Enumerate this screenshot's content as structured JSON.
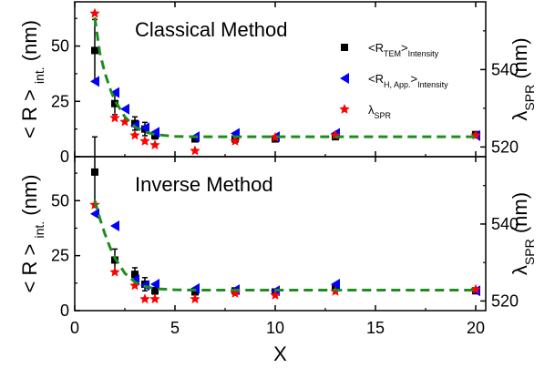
{
  "chart_data": [
    {
      "type": "scatter",
      "title": "Classical Method",
      "xlim": [
        0,
        20.5
      ],
      "ylim": [
        0,
        70
      ],
      "y2lim": [
        517.5,
        557.5
      ],
      "xticks": [
        0,
        5,
        10,
        15,
        20
      ],
      "yticks": [
        0,
        25,
        50
      ],
      "y2ticks": [
        520,
        540
      ],
      "ylabel": {
        "main": "< R >",
        "sub": "int.",
        "unit": "(nm)"
      },
      "y2label": {
        "main": "λ",
        "sub": "SPR",
        "unit": "(nm)"
      },
      "legend_position": "top-right",
      "series": [
        {
          "name": {
            "main": "<R",
            "sub": "TEM",
            "tail": ">",
            "sub2": "Intensity"
          },
          "marker": "square",
          "color": "#000000",
          "axis": "left",
          "x": [
            1,
            2,
            3,
            3.5,
            4,
            6,
            8,
            10,
            13,
            20
          ],
          "y": [
            48,
            24,
            15,
            12.5,
            9.5,
            8,
            8,
            8,
            9,
            10
          ],
          "err": [
            14,
            5,
            3,
            3,
            1.5,
            0,
            0,
            0,
            0,
            0
          ]
        },
        {
          "name": {
            "main": "<R",
            "sub": "H, App.",
            "tail": ">",
            "sub2": "Intensity"
          },
          "marker": "triangle-left",
          "color": "#0000ff",
          "axis": "left",
          "x": [
            1,
            2,
            2.5,
            3,
            3.5,
            4,
            6,
            8,
            10,
            13,
            20
          ],
          "y": [
            34,
            29,
            21.5,
            14,
            13,
            11,
            9,
            10.5,
            9,
            10.5,
            9.5
          ]
        },
        {
          "name": {
            "main": "λ",
            "sub": "SPR"
          },
          "marker": "star",
          "color": "#ff0000",
          "axis": "right",
          "x": [
            1,
            2,
            2.5,
            3,
            3.5,
            4,
            6,
            8,
            10,
            13,
            20
          ],
          "y": [
            554.5,
            527.5,
            526.5,
            523,
            521.5,
            520.5,
            519,
            521.5,
            522.5,
            523,
            523
          ]
        },
        {
          "name": "",
          "kind": "fit-line",
          "style": "dashed",
          "color": "#1e8c1e",
          "axis": "left",
          "x": [
            1,
            1.25,
            1.5,
            1.75,
            2,
            2.5,
            3,
            3.5,
            4,
            5,
            6,
            8,
            10,
            13,
            16,
            20
          ],
          "y": [
            63,
            47,
            38,
            31,
            25.5,
            18,
            13.5,
            11.2,
            10,
            9.2,
            9,
            9,
            9,
            9,
            9,
            9
          ]
        }
      ]
    },
    {
      "type": "scatter",
      "title": "Inverse Method",
      "xlim": [
        0,
        20.5
      ],
      "ylim": [
        0,
        70
      ],
      "y2lim": [
        517.5,
        557.5
      ],
      "xticks": [
        0,
        5,
        10,
        15,
        20
      ],
      "yticks": [
        0,
        25,
        50
      ],
      "y2ticks": [
        520,
        540
      ],
      "xlabel": "X",
      "ylabel": {
        "main": "< R >",
        "sub": "int.",
        "unit": "(nm)"
      },
      "y2label": {
        "main": "λ",
        "sub": "SPR",
        "unit": "(nm)"
      },
      "series": [
        {
          "marker": "square",
          "color": "#000000",
          "axis": "left",
          "x": [
            1,
            2,
            3,
            3.5,
            4,
            6,
            8,
            10,
            13,
            20
          ],
          "y": [
            63,
            23,
            16.5,
            12,
            9,
            8.5,
            9,
            8.5,
            10.5,
            9
          ],
          "err": [
            16,
            5,
            3,
            3,
            1.5,
            0,
            0,
            0,
            0,
            0
          ]
        },
        {
          "marker": "triangle-left",
          "color": "#0000ff",
          "axis": "left",
          "x": [
            1,
            2,
            3,
            3.5,
            4,
            6,
            8,
            10,
            13,
            20
          ],
          "y": [
            44,
            38.5,
            14,
            11.5,
            12,
            10,
            9.5,
            9,
            12,
            9
          ]
        },
        {
          "marker": "star",
          "color": "#ff0000",
          "axis": "right",
          "x": [
            1,
            2,
            3,
            3.5,
            4,
            6,
            8,
            10,
            13,
            20
          ],
          "y": [
            545,
            527.5,
            524,
            520.5,
            520.5,
            520.5,
            522,
            521.5,
            522.5,
            523
          ],
          "y_left_equivalent": null
        },
        {
          "kind": "fit-line",
          "style": "dashed",
          "color": "#1e8c1e",
          "axis": "left",
          "x": [
            1,
            1.25,
            1.5,
            1.75,
            2,
            2.5,
            3,
            3.5,
            4,
            5,
            6,
            8,
            10,
            13,
            16,
            20
          ],
          "y": [
            50,
            42,
            35,
            29,
            24,
            17,
            13,
            11,
            10,
            9.5,
            9.3,
            9.3,
            9.3,
            9.3,
            9.3,
            9.3
          ]
        }
      ]
    }
  ]
}
